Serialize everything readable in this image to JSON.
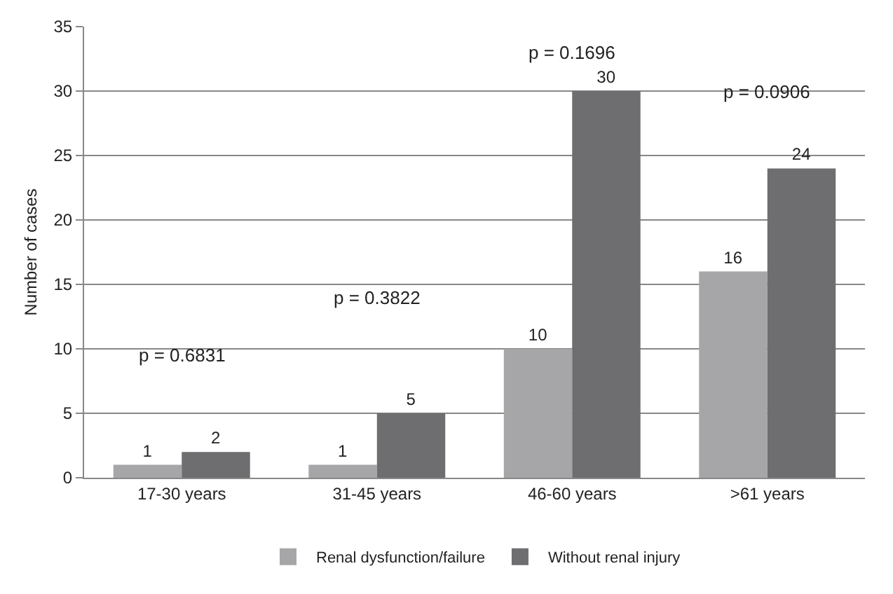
{
  "chart_data": {
    "type": "bar",
    "ylabel": "Number of cases",
    "categories": [
      "17-30 years",
      "31-45 years",
      "46-60 years",
      ">61 years"
    ],
    "series": [
      {
        "name": "Renal dysfunction/failure",
        "color": "#a6a6a8",
        "values": [
          1,
          1,
          10,
          16
        ]
      },
      {
        "name": "Without renal injury",
        "color": "#6e6e71",
        "values": [
          2,
          5,
          30,
          24
        ]
      }
    ],
    "ylim": [
      0,
      35
    ],
    "yticks": [
      0,
      5,
      10,
      15,
      20,
      25,
      30,
      35
    ],
    "grid": "y",
    "legend": "bottom",
    "data_labels": true,
    "annotations": [
      "p = 0.6831",
      "p = 0.3822",
      "p = 0.1696",
      "p = 0.0906"
    ]
  }
}
